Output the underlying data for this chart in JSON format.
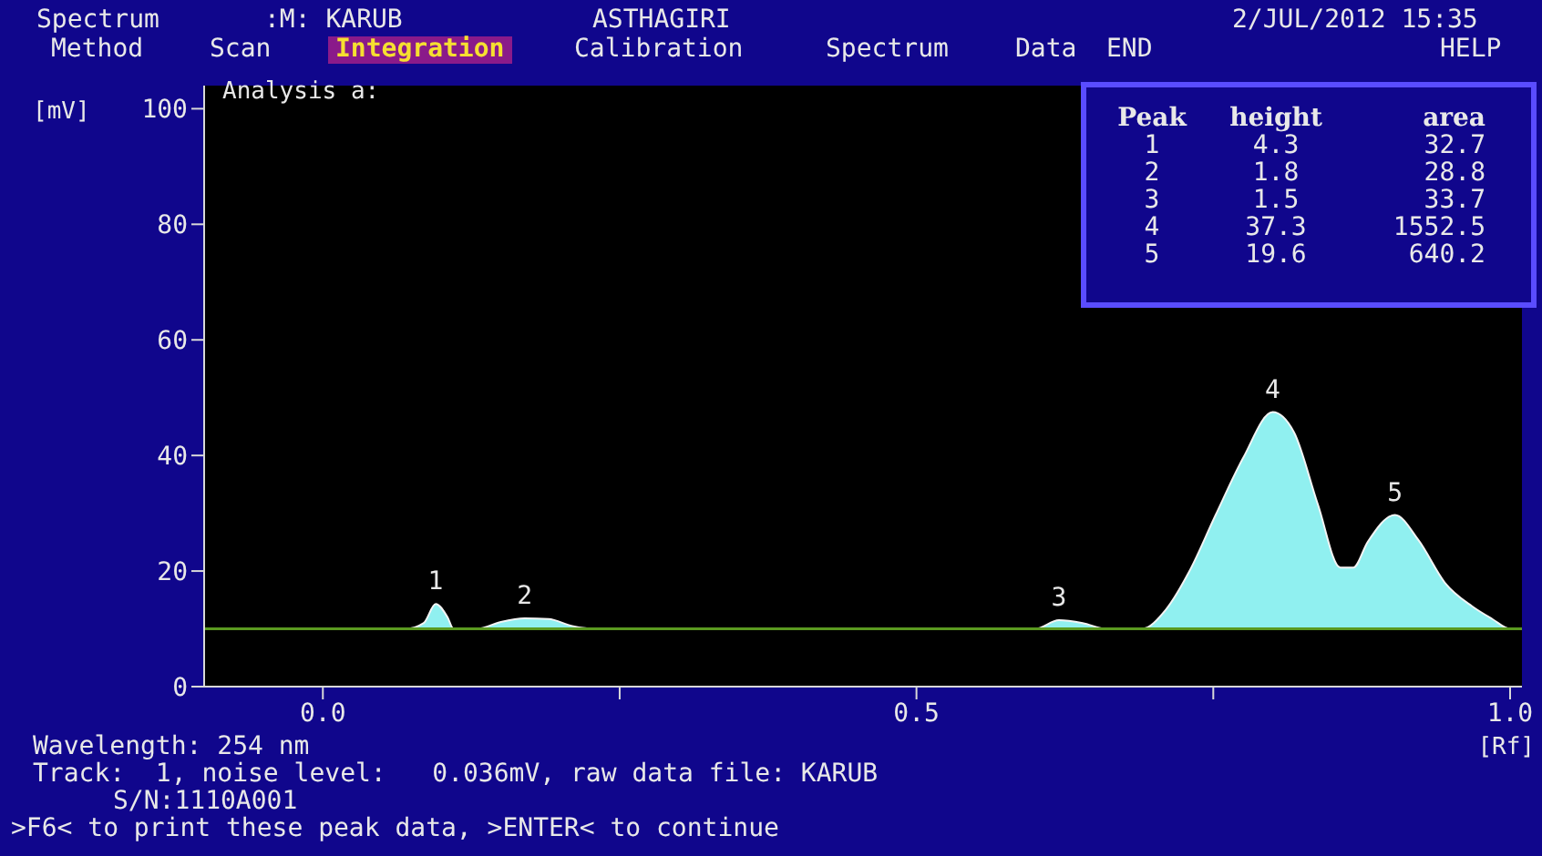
{
  "chart_data": {
    "type": "area",
    "title": "Analysis a:",
    "xlabel": "[Rf]",
    "ylabel": "[mV]",
    "x": [
      -0.1,
      0.07,
      0.085,
      0.095,
      0.105,
      0.11,
      0.13,
      0.15,
      0.17,
      0.19,
      0.21,
      0.23,
      0.6,
      0.62,
      0.64,
      0.66,
      0.69,
      0.71,
      0.73,
      0.752,
      0.775,
      0.8,
      0.818,
      0.838,
      0.857,
      0.868,
      0.88,
      0.903,
      0.923,
      0.945,
      0.968,
      0.985,
      1.0,
      1.01
    ],
    "series": [
      {
        "color": "#90f0f0",
        "values": [
          10,
          10,
          11,
          14.3,
          12,
          10,
          10,
          11.2,
          11.8,
          11.7,
          10.5,
          10,
          10,
          11.5,
          11,
          10,
          10,
          13.3,
          20,
          29.7,
          39.5,
          47.5,
          44,
          31.6,
          20.6,
          20.6,
          25,
          29.7,
          25.3,
          18,
          13.9,
          11.7,
          10,
          10
        ]
      }
    ],
    "xlim": [
      -0.1,
      1.01
    ],
    "ylim": [
      0,
      104
    ],
    "xticks": [
      {
        "value": 0,
        "label": "0.0"
      },
      {
        "value": 0.25,
        "label": null
      },
      {
        "value": 0.5,
        "label": "0.5"
      },
      {
        "value": 0.75,
        "label": null
      },
      {
        "value": 1,
        "label": "1.0"
      }
    ],
    "yticks": [
      0,
      20,
      40,
      60,
      80,
      100
    ],
    "ref_lines": [
      {
        "axis": "y",
        "value": 10,
        "color": "#5a9a20"
      }
    ],
    "annotations": [
      "Spectrum",
      ":M: KARUB",
      "ASTHAGIRI",
      "2/JUL/2012 15:35",
      "Method",
      "Scan",
      "Integration",
      "Calibration",
      "Spectrum",
      "Data",
      "END",
      "HELP",
      "Wavelength: 254 nm",
      "Track:  1, noise level:   0.036mV, raw data file: KARUB",
      "S/N:1110A001",
      ">F6< to print these peak data, >ENTER< to continue",
      "Peak",
      "height",
      "area",
      "1",
      "4.3",
      "32.7",
      "2",
      "1.8",
      "28.8",
      "3",
      "1.5",
      "33.7",
      "4",
      "37.3",
      "1552.5",
      "5",
      "19.6",
      "640.2",
      {
        "text": "1",
        "x": 0.095,
        "y": 14.3
      },
      {
        "text": "2",
        "x": 0.17,
        "y": 11.8
      },
      {
        "text": "3",
        "x": 0.62,
        "y": 11.5
      },
      {
        "text": "4",
        "x": 0.8,
        "y": 47.5
      },
      {
        "text": "5",
        "x": 0.903,
        "y": 29.7
      }
    ]
  }
}
